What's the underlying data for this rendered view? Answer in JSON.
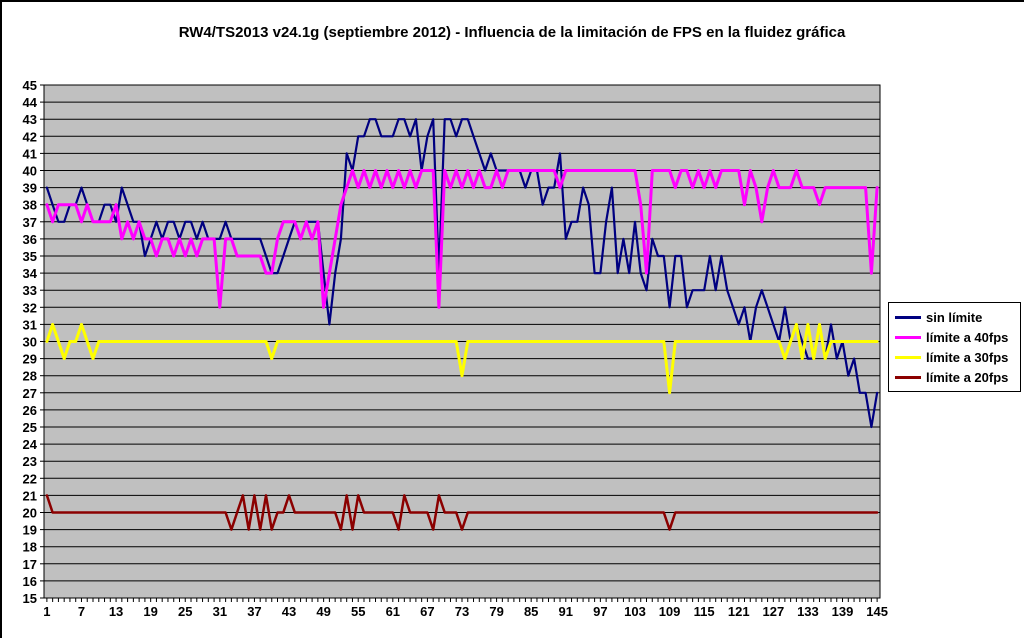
{
  "title": "RW4/TS2013 v24.1g (septiembre 2012) - Influencia de la limitación de FPS en la fluidez gráfica",
  "chart_data": {
    "type": "line",
    "title": "RW4/TS2013 v24.1g (septiembre 2012) - Influencia de la limitación de FPS en la fluidez gráfica",
    "xlabel": "",
    "ylabel": "",
    "xlim": [
      1,
      145
    ],
    "ylim": [
      15,
      45
    ],
    "y_step": 1,
    "x_tick_labels": [
      1,
      7,
      13,
      19,
      25,
      31,
      37,
      43,
      49,
      55,
      61,
      67,
      73,
      79,
      85,
      91,
      97,
      103,
      109,
      115,
      121,
      127,
      133,
      139,
      145
    ],
    "grid": "horizontal",
    "plot_bg_color": "#c0c0c0",
    "grid_color": "#000000",
    "axis_color": "#000000",
    "legend_position": "right",
    "series": [
      {
        "name": "sin límite",
        "color": "#000080",
        "values": [
          39,
          38,
          37,
          37,
          38,
          38,
          39,
          38,
          37,
          37,
          38,
          38,
          37,
          39,
          38,
          37,
          37,
          35,
          36,
          37,
          36,
          37,
          37,
          36,
          37,
          37,
          36,
          37,
          36,
          36,
          36,
          37,
          36,
          36,
          36,
          36,
          36,
          36,
          35,
          34,
          34,
          35,
          36,
          37,
          36,
          37,
          37,
          37,
          34,
          31,
          34,
          36,
          41,
          40,
          42,
          42,
          43,
          43,
          42,
          42,
          42,
          43,
          43,
          42,
          43,
          40,
          42,
          43,
          34,
          43,
          43,
          42,
          43,
          43,
          42,
          41,
          40,
          41,
          40,
          40,
          40,
          40,
          40,
          39,
          40,
          40,
          38,
          39,
          39,
          41,
          36,
          37,
          37,
          39,
          38,
          34,
          34,
          37,
          39,
          34,
          36,
          34,
          37,
          34,
          33,
          36,
          35,
          35,
          32,
          35,
          35,
          32,
          33,
          33,
          33,
          35,
          33,
          35,
          33,
          32,
          31,
          32,
          30,
          32,
          33,
          32,
          31,
          30,
          32,
          30,
          31,
          30,
          29,
          29,
          31,
          29,
          31,
          29,
          30,
          28,
          29,
          27,
          27,
          25,
          27
        ]
      },
      {
        "name": "límite a 40fps",
        "color": "#ff00ff",
        "values": [
          38,
          37,
          38,
          38,
          38,
          38,
          37,
          38,
          37,
          37,
          37,
          37,
          38,
          36,
          37,
          36,
          37,
          36,
          36,
          35,
          36,
          36,
          35,
          36,
          35,
          36,
          35,
          36,
          36,
          36,
          32,
          36,
          36,
          35,
          35,
          35,
          35,
          35,
          34,
          34,
          36,
          37,
          37,
          37,
          36,
          37,
          36,
          37,
          32,
          34,
          36,
          38,
          39,
          40,
          39,
          40,
          39,
          40,
          39,
          40,
          39,
          40,
          39,
          40,
          39,
          40,
          40,
          40,
          32,
          40,
          39,
          40,
          39,
          40,
          39,
          40,
          39,
          39,
          40,
          39,
          40,
          40,
          40,
          40,
          40,
          40,
          40,
          40,
          40,
          39,
          40,
          40,
          40,
          40,
          40,
          40,
          40,
          40,
          40,
          40,
          40,
          40,
          40,
          38,
          34,
          40,
          40,
          40,
          40,
          39,
          40,
          40,
          39,
          40,
          39,
          40,
          39,
          40,
          40,
          40,
          40,
          38,
          40,
          39,
          37,
          39,
          40,
          39,
          39,
          39,
          40,
          39,
          39,
          39,
          38,
          39,
          39,
          39,
          39,
          39,
          39,
          39,
          39,
          34,
          39
        ]
      },
      {
        "name": "límite a 30fps",
        "color": "#ffff00",
        "values": [
          30,
          31,
          30,
          29,
          30,
          30,
          31,
          30,
          29,
          30,
          30,
          30,
          30,
          30,
          30,
          30,
          30,
          30,
          30,
          30,
          30,
          30,
          30,
          30,
          30,
          30,
          30,
          30,
          30,
          30,
          30,
          30,
          30,
          30,
          30,
          30,
          30,
          30,
          30,
          29,
          30,
          30,
          30,
          30,
          30,
          30,
          30,
          30,
          30,
          30,
          30,
          30,
          30,
          30,
          30,
          30,
          30,
          30,
          30,
          30,
          30,
          30,
          30,
          30,
          30,
          30,
          30,
          30,
          30,
          30,
          30,
          30,
          28,
          30,
          30,
          30,
          30,
          30,
          30,
          30,
          30,
          30,
          30,
          30,
          30,
          30,
          30,
          30,
          30,
          30,
          30,
          30,
          30,
          30,
          30,
          30,
          30,
          30,
          30,
          30,
          30,
          30,
          30,
          30,
          30,
          30,
          30,
          30,
          27,
          30,
          30,
          30,
          30,
          30,
          30,
          30,
          30,
          30,
          30,
          30,
          30,
          30,
          30,
          30,
          30,
          30,
          30,
          30,
          29,
          30,
          31,
          29,
          31,
          29,
          31,
          29,
          30,
          30,
          30,
          30,
          30,
          30,
          30,
          30,
          30
        ]
      },
      {
        "name": "límite a 20fps",
        "color": "#8b0000",
        "values": [
          21,
          20,
          20,
          20,
          20,
          20,
          20,
          20,
          20,
          20,
          20,
          20,
          20,
          20,
          20,
          20,
          20,
          20,
          20,
          20,
          20,
          20,
          20,
          20,
          20,
          20,
          20,
          20,
          20,
          20,
          20,
          20,
          19,
          20,
          21,
          19,
          21,
          19,
          21,
          19,
          20,
          20,
          21,
          20,
          20,
          20,
          20,
          20,
          20,
          20,
          20,
          19,
          21,
          19,
          21,
          20,
          20,
          20,
          20,
          20,
          20,
          19,
          21,
          20,
          20,
          20,
          20,
          19,
          21,
          20,
          20,
          20,
          19,
          20,
          20,
          20,
          20,
          20,
          20,
          20,
          20,
          20,
          20,
          20,
          20,
          20,
          20,
          20,
          20,
          20,
          20,
          20,
          20,
          20,
          20,
          20,
          20,
          20,
          20,
          20,
          20,
          20,
          20,
          20,
          20,
          20,
          20,
          20,
          19,
          20,
          20,
          20,
          20,
          20,
          20,
          20,
          20,
          20,
          20,
          20,
          20,
          20,
          20,
          20,
          20,
          20,
          20,
          20,
          20,
          20,
          20,
          20,
          20,
          20,
          20,
          20,
          20,
          20,
          20,
          20,
          20,
          20,
          20,
          20,
          20
        ]
      }
    ]
  }
}
